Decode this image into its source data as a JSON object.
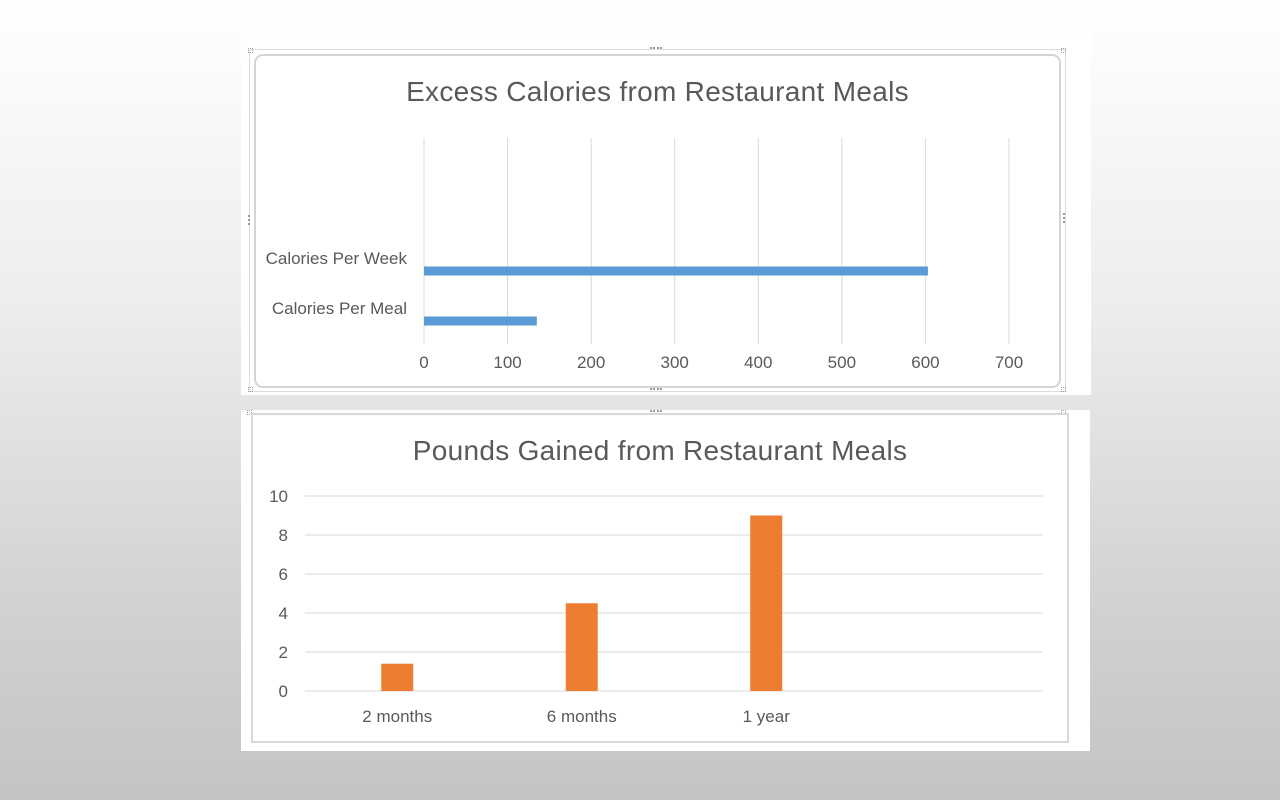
{
  "chart_data": [
    {
      "type": "bar",
      "orientation": "horizontal",
      "title": "Excess Calories from Restaurant Meals",
      "categories": [
        "Calories Per Meal",
        "Calories Per Week"
      ],
      "values": [
        135,
        603
      ],
      "xlim": [
        0,
        700
      ],
      "ticks": [
        "0",
        "100",
        "200",
        "300",
        "400",
        "500",
        "600",
        "700"
      ],
      "grid": "vertical",
      "legend": "none",
      "color": "#5b9bd5"
    },
    {
      "type": "bar",
      "orientation": "vertical",
      "title": "Pounds Gained from Restaurant Meals",
      "categories": [
        "2 months",
        "6 months",
        "1 year"
      ],
      "values": [
        1.4,
        4.5,
        9.0
      ],
      "ylim": [
        0,
        10
      ],
      "ticks": [
        "0",
        "2",
        "4",
        "6",
        "8",
        "10"
      ],
      "grid": "horizontal",
      "legend": "none",
      "color": "#ed7d31"
    }
  ]
}
